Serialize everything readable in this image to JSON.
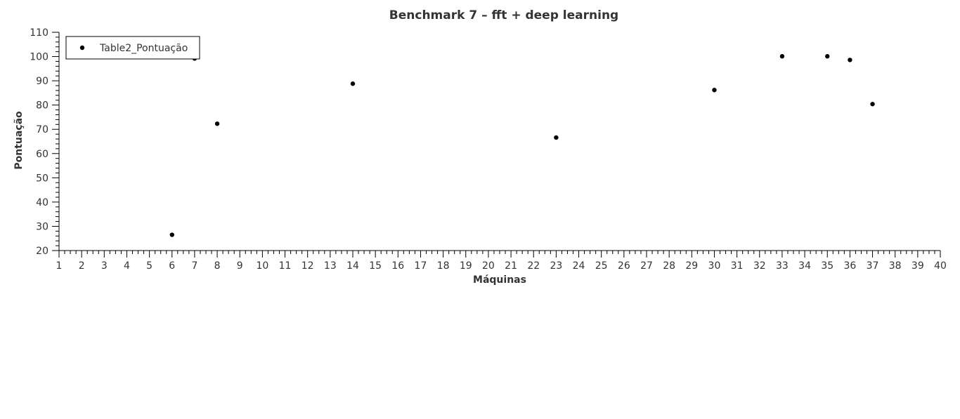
{
  "chart_data": {
    "type": "scatter",
    "title": "Benchmark 7 – fft + deep learning",
    "xlabel": "Máquinas",
    "ylabel": "Pontuação",
    "xlim": [
      1,
      40
    ],
    "ylim": [
      20,
      110
    ],
    "x_ticks": [
      1,
      2,
      3,
      4,
      5,
      6,
      7,
      8,
      9,
      10,
      11,
      12,
      13,
      14,
      15,
      16,
      17,
      18,
      19,
      20,
      21,
      22,
      23,
      24,
      25,
      26,
      27,
      28,
      29,
      30,
      31,
      32,
      33,
      34,
      35,
      36,
      37,
      38,
      39,
      40
    ],
    "y_ticks": [
      20,
      30,
      40,
      50,
      60,
      70,
      80,
      90,
      100,
      110
    ],
    "legend_position": "top-left",
    "grid": false,
    "series": [
      {
        "name": "Table2_Pontuação",
        "color": "#000000",
        "points": [
          {
            "x": 6,
            "y": 26.5
          },
          {
            "x": 7,
            "y": 99.2
          },
          {
            "x": 8,
            "y": 72.3
          },
          {
            "x": 14,
            "y": 88.8
          },
          {
            "x": 23,
            "y": 66.6
          },
          {
            "x": 30,
            "y": 86.2
          },
          {
            "x": 33,
            "y": 100.1
          },
          {
            "x": 35,
            "y": 100.1
          },
          {
            "x": 36,
            "y": 98.6
          },
          {
            "x": 37,
            "y": 80.4
          }
        ]
      }
    ]
  }
}
